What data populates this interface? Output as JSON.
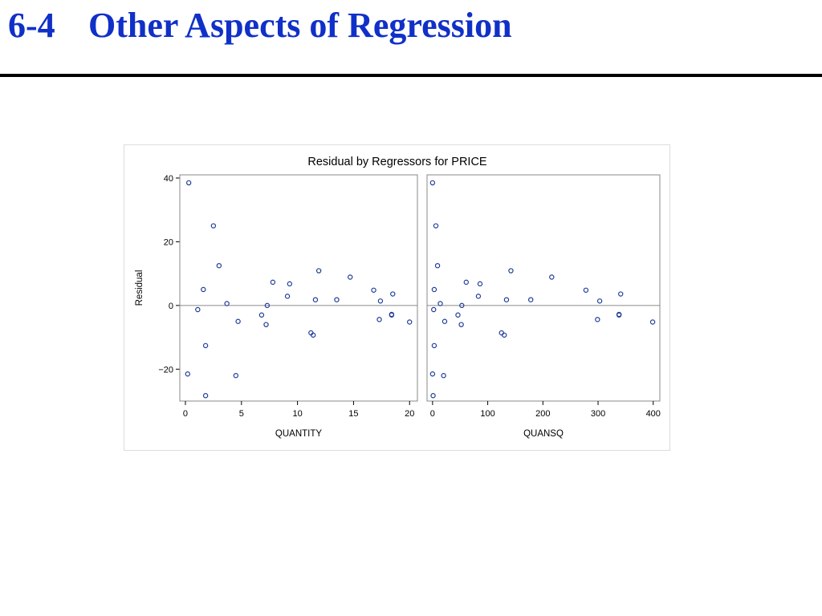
{
  "slide": {
    "number": "6-4",
    "title": "Other Aspects of Regression"
  },
  "colors": {
    "title": "#1030c8",
    "marker": "#1f3d99",
    "frame": "#888888",
    "reference_line": "#8a8a8a"
  },
  "chart_data": {
    "type": "scatter",
    "title": "Residual by Regressors for PRICE",
    "ylabel": "Residual",
    "ylim": [
      -30,
      41
    ],
    "yticks": [
      -20,
      0,
      20,
      40
    ],
    "reference_line_y": 0,
    "marker": "open-circle",
    "grid": false,
    "panels": [
      {
        "xlabel": "QUANTITY",
        "xlim": [
          -0.5,
          20.7
        ],
        "xticks": [
          0,
          5,
          10,
          15,
          20
        ],
        "points": [
          [
            0.3,
            38.5
          ],
          [
            0.2,
            -21.5
          ],
          [
            1.1,
            -1.3
          ],
          [
            1.6,
            5.0
          ],
          [
            1.8,
            -12.6
          ],
          [
            1.8,
            -28.3
          ],
          [
            2.5,
            25.0
          ],
          [
            3.0,
            12.5
          ],
          [
            3.7,
            0.6
          ],
          [
            4.5,
            -22.0
          ],
          [
            4.7,
            -5.0
          ],
          [
            6.8,
            -3.0
          ],
          [
            7.2,
            -6.0
          ],
          [
            7.3,
            0.0
          ],
          [
            7.8,
            7.3
          ],
          [
            9.1,
            2.9
          ],
          [
            9.3,
            6.8
          ],
          [
            11.2,
            -8.6
          ],
          [
            11.4,
            -9.3
          ],
          [
            11.6,
            1.8
          ],
          [
            11.9,
            10.9
          ],
          [
            13.5,
            1.8
          ],
          [
            14.7,
            8.9
          ],
          [
            16.8,
            4.8
          ],
          [
            17.3,
            -4.4
          ],
          [
            17.4,
            1.4
          ],
          [
            18.4,
            -2.8
          ],
          [
            18.4,
            -3.0
          ],
          [
            18.5,
            3.6
          ],
          [
            20.0,
            -5.2
          ]
        ]
      },
      {
        "xlabel": "QUANSQ",
        "xlim": [
          -10,
          412
        ],
        "xticks": [
          0,
          100,
          200,
          300,
          400
        ],
        "points": [
          [
            0,
            38.5
          ],
          [
            0,
            -21.5
          ],
          [
            1,
            -28.3
          ],
          [
            2,
            -1.3
          ],
          [
            3,
            5.0
          ],
          [
            3,
            -12.6
          ],
          [
            6,
            25.0
          ],
          [
            9,
            12.5
          ],
          [
            14,
            0.6
          ],
          [
            20,
            -22.0
          ],
          [
            22,
            -5.0
          ],
          [
            46,
            -3.0
          ],
          [
            52,
            -6.0
          ],
          [
            53,
            0.0
          ],
          [
            61,
            7.3
          ],
          [
            83,
            2.9
          ],
          [
            86,
            6.8
          ],
          [
            125,
            -8.6
          ],
          [
            130,
            -9.3
          ],
          [
            134,
            1.8
          ],
          [
            142,
            10.9
          ],
          [
            178,
            1.8
          ],
          [
            216,
            8.9
          ],
          [
            278,
            4.8
          ],
          [
            299,
            -4.4
          ],
          [
            303,
            1.4
          ],
          [
            338,
            -2.8
          ],
          [
            338,
            -3.0
          ],
          [
            341,
            3.6
          ],
          [
            399,
            -5.2
          ]
        ]
      }
    ]
  }
}
